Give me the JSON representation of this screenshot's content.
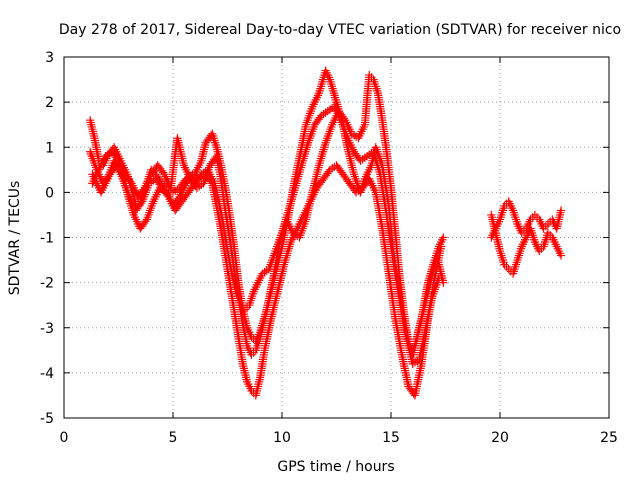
{
  "chart_data": {
    "type": "scatter",
    "title": "Day 278 of 2017, Sidereal Day-to-day VTEC variation (SDTVAR) for receiver nico",
    "xlabel": "GPS time / hours",
    "ylabel": "SDTVAR / TECUs",
    "xlim": [
      0,
      25
    ],
    "ylim": [
      -5,
      3
    ],
    "xticks": [
      0,
      5,
      10,
      15,
      20,
      25
    ],
    "yticks": [
      -5,
      -4,
      -3,
      -2,
      -1,
      0,
      1,
      2,
      3
    ],
    "grid": true,
    "marker": "plus",
    "color": "#ff0000",
    "series": [
      {
        "x": [
          1.2,
          1.4,
          1.6,
          1.8,
          2.0,
          2.3,
          2.6,
          2.9,
          3.1,
          3.3,
          3.5,
          3.8,
          4.0,
          4.2,
          4.5,
          4.8,
          5.0,
          5.3,
          5.6,
          6.0,
          6.3,
          6.5,
          6.8,
          7.0,
          7.2,
          7.4,
          7.6,
          7.8,
          8.0,
          8.2,
          8.4,
          8.6,
          8.8,
          9.0,
          9.3,
          9.6,
          10.0,
          10.3,
          10.6,
          10.9,
          11.1,
          11.4,
          11.7,
          12.0,
          12.2,
          12.5,
          12.8,
          13.0,
          13.3,
          13.6,
          13.8,
          14.1,
          14.3,
          14.6,
          14.9,
          15.1,
          15.4,
          15.6,
          15.9,
          16.1,
          16.4,
          16.7,
          17.0,
          17.2,
          17.4
        ],
        "values": [
          1.6,
          1.2,
          0.7,
          0.6,
          0.8,
          1.0,
          0.7,
          0.4,
          0.1,
          -0.3,
          -0.2,
          0.2,
          0.5,
          0.4,
          0.2,
          0.1,
          0.0,
          0.1,
          0.3,
          0.4,
          0.7,
          1.1,
          1.3,
          1.0,
          0.6,
          0.1,
          -0.5,
          -1.2,
          -2.0,
          -2.6,
          -3.0,
          -3.2,
          -3.3,
          -3.1,
          -2.6,
          -2.0,
          -1.2,
          -0.5,
          0.3,
          1.0,
          1.5,
          1.9,
          2.2,
          2.7,
          2.5,
          2.0,
          1.5,
          1.0,
          0.4,
          0.0,
          0.3,
          0.6,
          1.0,
          0.6,
          -0.3,
          -1.3,
          -2.2,
          -3.0,
          -3.5,
          -3.4,
          -2.8,
          -2.0,
          -1.5,
          -1.2,
          -1.0
        ]
      },
      {
        "x": [
          1.3,
          1.5,
          1.7,
          2.0,
          2.3,
          2.6,
          2.9,
          3.2,
          3.5,
          3.8,
          4.1,
          4.4,
          4.7,
          5.0,
          5.3,
          5.6,
          5.9,
          6.2,
          6.5,
          6.8,
          7.0,
          7.2,
          7.4,
          7.6,
          7.8,
          8.0,
          8.2,
          8.4,
          8.6,
          8.8,
          9.0,
          9.2,
          9.5,
          9.8,
          10.1,
          10.4,
          10.7,
          11.0,
          11.3,
          11.6,
          11.9,
          12.2,
          12.5,
          12.8,
          13.1,
          13.4,
          13.7,
          14.0,
          14.3,
          14.6,
          14.9,
          15.2,
          15.5,
          15.8,
          16.1,
          16.4,
          16.7,
          17.0,
          17.3
        ],
        "values": [
          0.4,
          0.2,
          0.0,
          0.3,
          0.7,
          0.5,
          0.0,
          -0.5,
          -0.8,
          -0.6,
          -0.2,
          0.1,
          0.0,
          -0.3,
          -0.1,
          0.2,
          0.4,
          0.3,
          0.4,
          0.2,
          -0.3,
          -0.8,
          -1.4,
          -2.0,
          -2.6,
          -3.2,
          -3.8,
          -4.2,
          -4.4,
          -4.5,
          -4.1,
          -3.5,
          -2.8,
          -2.2,
          -1.6,
          -1.1,
          -0.8,
          -0.5,
          -0.2,
          0.1,
          0.3,
          0.5,
          0.6,
          0.4,
          0.2,
          0.0,
          0.1,
          0.3,
          0.0,
          -0.8,
          -1.8,
          -2.8,
          -3.6,
          -4.3,
          -4.5,
          -3.8,
          -2.8,
          -1.9,
          -1.2
        ]
      },
      {
        "x": [
          1.2,
          1.5,
          1.8,
          2.1,
          2.4,
          2.7,
          3.0,
          3.3,
          3.6,
          3.9,
          4.2,
          4.5,
          4.8,
          5.1,
          5.4,
          5.7,
          6.0,
          6.3,
          6.6,
          6.9,
          7.1,
          7.3,
          7.5,
          7.7,
          7.9,
          8.1,
          8.3,
          8.5,
          8.7,
          8.9,
          9.1,
          9.4,
          9.7,
          10.0,
          10.3,
          10.6,
          10.9,
          11.2,
          11.5,
          11.8,
          12.1,
          12.4,
          12.7,
          13.0,
          13.3,
          13.6,
          13.9,
          14.2,
          14.5,
          14.8,
          15.1,
          15.4,
          15.7,
          16.0,
          16.3,
          16.6,
          16.9,
          17.2
        ],
        "values": [
          0.9,
          0.5,
          0.2,
          0.4,
          0.6,
          0.3,
          -0.1,
          -0.4,
          -0.2,
          0.2,
          0.3,
          0.1,
          -0.1,
          -0.4,
          -0.2,
          0.0,
          0.2,
          0.4,
          0.5,
          0.2,
          -0.2,
          -0.7,
          -1.3,
          -1.8,
          -2.2,
          -2.5,
          -2.6,
          -2.5,
          -2.2,
          -2.0,
          -1.8,
          -1.7,
          -1.3,
          -0.9,
          -0.4,
          0.1,
          0.6,
          1.1,
          1.5,
          1.7,
          1.8,
          1.9,
          1.6,
          1.2,
          0.9,
          0.7,
          0.8,
          0.9,
          0.4,
          -0.5,
          -1.5,
          -2.4,
          -3.2,
          -3.8,
          -3.7,
          -3.0,
          -2.3,
          -1.9
        ]
      },
      {
        "x": [
          1.3,
          1.6,
          1.9,
          2.2,
          2.5,
          2.8,
          3.1,
          3.4,
          3.7,
          4.0,
          4.3,
          4.6,
          4.9,
          5.2,
          5.5,
          5.8,
          6.1,
          6.4,
          6.7,
          7.0,
          7.2,
          7.4,
          7.6,
          7.8,
          8.0,
          8.2,
          8.4,
          8.6,
          8.8,
          9.0,
          9.3,
          9.6,
          9.9,
          10.2,
          10.5,
          10.8,
          11.1,
          11.4,
          11.7,
          12.0,
          12.3,
          12.6,
          12.9,
          13.2,
          13.5,
          13.8,
          14.0,
          14.2,
          14.4,
          14.6,
          14.8,
          15.0,
          15.2,
          15.4,
          15.6,
          15.8,
          16.0,
          16.2,
          16.5,
          16.8,
          17.1,
          17.4
        ],
        "values": [
          0.2,
          0.5,
          0.8,
          0.9,
          0.7,
          0.4,
          0.2,
          -0.1,
          0.1,
          0.4,
          0.6,
          0.4,
          0.1,
          1.2,
          0.6,
          0.3,
          0.1,
          0.2,
          0.6,
          0.8,
          0.3,
          -0.4,
          -1.0,
          -1.7,
          -2.3,
          -2.9,
          -3.4,
          -3.6,
          -3.5,
          -3.2,
          -2.6,
          -1.9,
          -1.1,
          -0.6,
          -0.9,
          -1.0,
          -0.6,
          0.0,
          0.6,
          1.1,
          1.5,
          1.8,
          1.6,
          1.3,
          1.2,
          1.5,
          2.6,
          2.5,
          2.2,
          1.6,
          0.9,
          0.1,
          -0.9,
          -1.9,
          -2.7,
          -3.3,
          -3.6,
          -3.2,
          -2.6,
          -2.0,
          -1.4,
          -2.0
        ]
      },
      {
        "x": [
          19.6,
          19.8,
          20.0,
          20.2,
          20.4,
          20.6,
          20.8,
          21.0,
          21.2,
          21.4,
          21.6,
          21.8,
          22.0,
          22.2,
          22.4,
          22.6,
          22.8
        ],
        "values": [
          -1.0,
          -0.8,
          -0.6,
          -0.3,
          -0.2,
          -0.4,
          -0.7,
          -0.9,
          -0.8,
          -0.6,
          -0.5,
          -0.6,
          -0.8,
          -0.7,
          -0.6,
          -0.8,
          -0.4
        ]
      },
      {
        "x": [
          19.6,
          19.8,
          20.0,
          20.2,
          20.4,
          20.6,
          20.8,
          21.0,
          21.2,
          21.4,
          21.6,
          21.8,
          22.0,
          22.2,
          22.4,
          22.6,
          22.8
        ],
        "values": [
          -0.5,
          -0.9,
          -1.3,
          -1.6,
          -1.7,
          -1.8,
          -1.5,
          -1.2,
          -1.0,
          -0.8,
          -1.1,
          -1.3,
          -1.2,
          -0.9,
          -1.0,
          -1.2,
          -1.4
        ]
      }
    ]
  }
}
